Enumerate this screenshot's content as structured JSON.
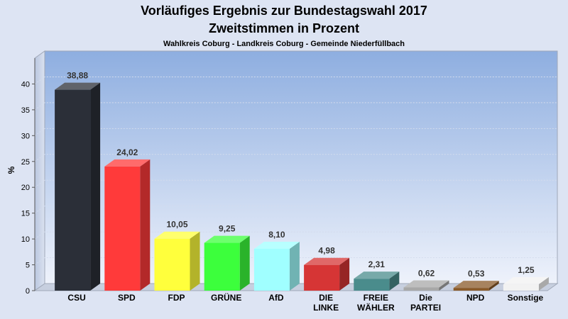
{
  "chart_data": {
    "type": "bar",
    "title": "Vorläufiges Ergebnis zur Bundestagswahl 2017",
    "subtitle": "Zweitstimmen in Prozent",
    "caption": "Wahlkreis Coburg - Landkreis Coburg - Gemeinde Niederfüllbach",
    "ylabel": "%",
    "ylim": [
      0,
      45
    ],
    "yticks": [
      "0",
      "5",
      "10",
      "15",
      "20",
      "25",
      "30",
      "35",
      "40"
    ],
    "categories": [
      [
        "CSU"
      ],
      [
        "SPD"
      ],
      [
        "FDP"
      ],
      [
        "GRÜNE"
      ],
      [
        "AfD"
      ],
      [
        "DIE",
        "LINKE"
      ],
      [
        "FREIE",
        "WÄHLER"
      ],
      [
        "Die",
        "PARTEI"
      ],
      [
        "NPD"
      ],
      [
        "Sonstige"
      ]
    ],
    "values": [
      38.88,
      24.02,
      10.05,
      9.25,
      8.1,
      4.98,
      2.31,
      0.62,
      0.53,
      1.25
    ],
    "value_labels": [
      "38,88",
      "24,02",
      "10,05",
      "9,25",
      "8,10",
      "4,98",
      "2,31",
      "0,62",
      "0,53",
      "1,25"
    ],
    "colors": [
      "#2b2f38",
      "#ff3a3a",
      "#ffff3c",
      "#3cff3c",
      "#a0ffff",
      "#d63535",
      "#4a8c8c",
      "#a8a8a8",
      "#8a5a2a",
      "#f2f2f2"
    ],
    "grid": true
  }
}
